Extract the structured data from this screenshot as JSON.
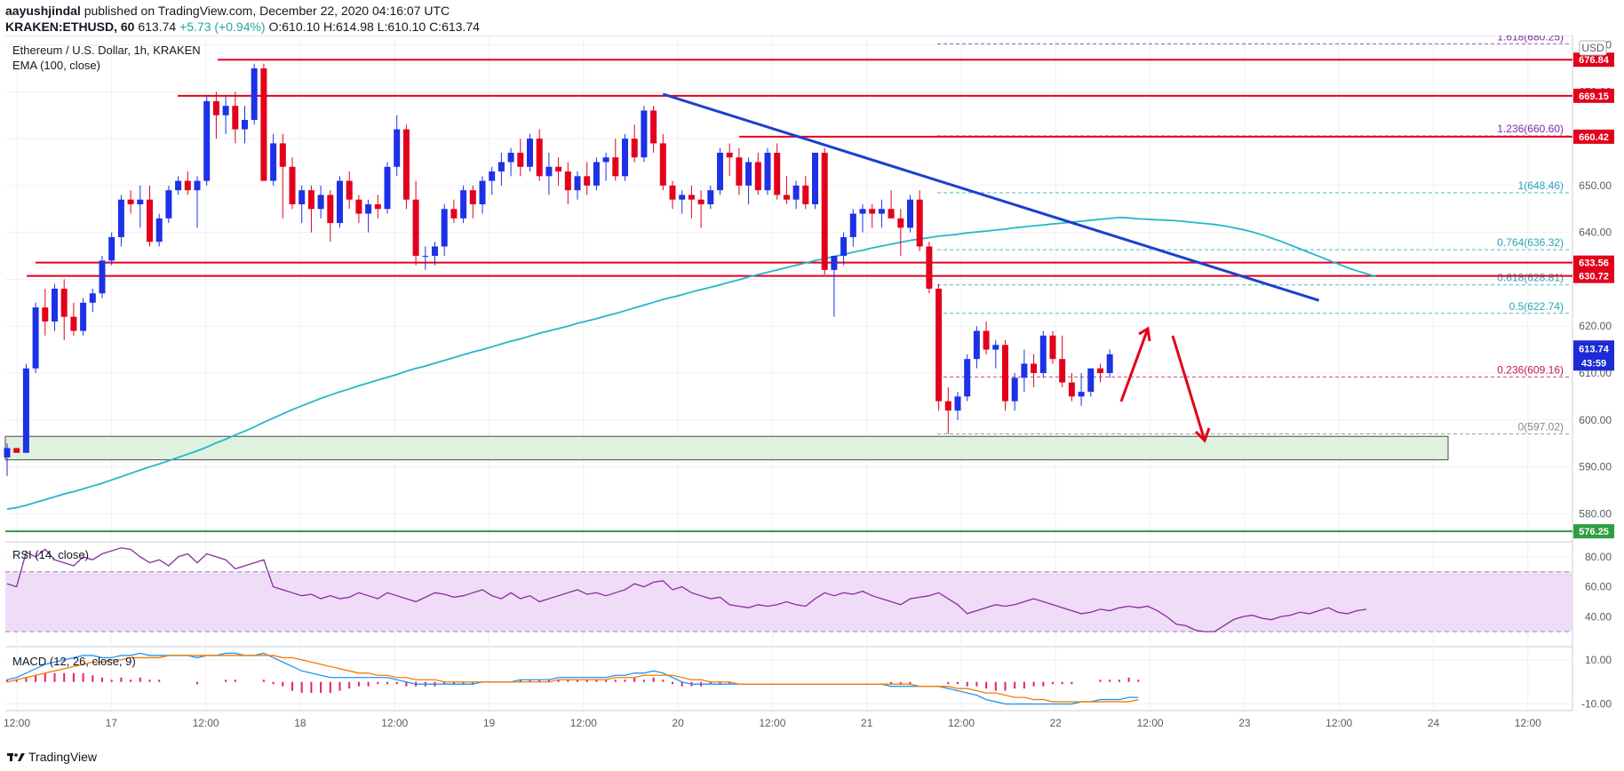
{
  "header": {
    "author": "aayushjindal",
    "published_text": "published on TradingView.com, December 22, 2020 04:16:07 UTC",
    "symbol": "KRAKEN:ETHUSD, 60",
    "last": "613.74",
    "change": "+5.73 (+0.94%)",
    "ohlc": "O:610.10 H:614.98 L:610.10 C:613.74"
  },
  "legend": {
    "title": "Ethereum / U.S. Dollar, 1h, KRAKEN",
    "ema": "EMA (100, close)",
    "rsi": "RSI (14, close)",
    "macd": "MACD (12, 26, close, 9)"
  },
  "footer": {
    "brand": "TradingView"
  },
  "colors": {
    "up": "#1d31e6",
    "down": "#e3001b",
    "ema": "#22b8c9",
    "trendline": "#1e3fcf",
    "resistance": "#e3001b",
    "support_zone": "#dff2df",
    "support_line": "#2e9e3f",
    "fib": "#6a8fd8",
    "rsi": "#8a2d9e",
    "rsi_band": "#efdcf7",
    "macd": "#2196f3",
    "signal": "#f57c00",
    "hist": "#e91e63"
  },
  "chart_data": [
    {
      "type": "candlestick",
      "title": "Ethereum / U.S. Dollar, 1h, KRAKEN",
      "ylim": [
        574,
        682
      ],
      "y_ticks": [
        580,
        590,
        600,
        610,
        620,
        630,
        640,
        650,
        660,
        670,
        680
      ],
      "x_ticks": [
        "12:00",
        "17",
        "12:00",
        "18",
        "12:00",
        "19",
        "12:00",
        "20",
        "12:00",
        "21",
        "12:00",
        "22",
        "12:00",
        "23",
        "12:00",
        "24",
        "12:00"
      ],
      "ohlc": [
        [
          592,
          595,
          588,
          594
        ],
        [
          594,
          594,
          593,
          593
        ],
        [
          593,
          612,
          593,
          611
        ],
        [
          611,
          625,
          610,
          624
        ],
        [
          624,
          628,
          618,
          621
        ],
        [
          621,
          629,
          619,
          628
        ],
        [
          628,
          630,
          617,
          622
        ],
        [
          622,
          625,
          618,
          619
        ],
        [
          619,
          626,
          618,
          625
        ],
        [
          625,
          628,
          623,
          627
        ],
        [
          627,
          635,
          626,
          634
        ],
        [
          634,
          640,
          633,
          639
        ],
        [
          639,
          648,
          637,
          647
        ],
        [
          647,
          649,
          644,
          646
        ],
        [
          646,
          650,
          641,
          647
        ],
        [
          647,
          650,
          637,
          638
        ],
        [
          638,
          644,
          637,
          643
        ],
        [
          643,
          650,
          642,
          649
        ],
        [
          649,
          652,
          648,
          651
        ],
        [
          651,
          653,
          648,
          649
        ],
        [
          649,
          652,
          641,
          651
        ],
        [
          651,
          669,
          650,
          668
        ],
        [
          668,
          670,
          660,
          665
        ],
        [
          665,
          669,
          661,
          667
        ],
        [
          667,
          670,
          659,
          662
        ],
        [
          662,
          667,
          659,
          664
        ],
        [
          664,
          676,
          663,
          675
        ],
        [
          675,
          676,
          651,
          651
        ],
        [
          651,
          661,
          650,
          659
        ],
        [
          659,
          661,
          643,
          654
        ],
        [
          654,
          656,
          645,
          646
        ],
        [
          646,
          650,
          642,
          649
        ],
        [
          649,
          650,
          640,
          645
        ],
        [
          645,
          650,
          643,
          648
        ],
        [
          648,
          649,
          638,
          642
        ],
        [
          642,
          652,
          641,
          651
        ],
        [
          651,
          653,
          645,
          647
        ],
        [
          647,
          648,
          642,
          644
        ],
        [
          644,
          647,
          640,
          646
        ],
        [
          646,
          648,
          643,
          645
        ],
        [
          645,
          655,
          644,
          654
        ],
        [
          654,
          665,
          652,
          662
        ],
        [
          662,
          663,
          645,
          647
        ],
        [
          647,
          651,
          633,
          635
        ],
        [
          635,
          637,
          632,
          635
        ],
        [
          635,
          638,
          633,
          637
        ],
        [
          637,
          646,
          635,
          645
        ],
        [
          645,
          647,
          642,
          643
        ],
        [
          643,
          650,
          642,
          649
        ],
        [
          649,
          650,
          643,
          646
        ],
        [
          646,
          652,
          644,
          651
        ],
        [
          651,
          654,
          648,
          653
        ],
        [
          653,
          657,
          650,
          655
        ],
        [
          655,
          658,
          652,
          657
        ],
        [
          657,
          660,
          652,
          654
        ],
        [
          654,
          661,
          653,
          660
        ],
        [
          660,
          662,
          651,
          652
        ],
        [
          652,
          657,
          648,
          654
        ],
        [
          654,
          656,
          650,
          653
        ],
        [
          653,
          655,
          646,
          649
        ],
        [
          649,
          653,
          647,
          652
        ],
        [
          652,
          655,
          648,
          650
        ],
        [
          650,
          656,
          649,
          655
        ],
        [
          655,
          657,
          651,
          656
        ],
        [
          656,
          660,
          651,
          652
        ],
        [
          652,
          661,
          651,
          660
        ],
        [
          660,
          663,
          655,
          656
        ],
        [
          656,
          667,
          655,
          666
        ],
        [
          666,
          667,
          657,
          659
        ],
        [
          659,
          661,
          649,
          650
        ],
        [
          650,
          651,
          645,
          647
        ],
        [
          647,
          649,
          644,
          648
        ],
        [
          648,
          650,
          643,
          647
        ],
        [
          647,
          649,
          641,
          646
        ],
        [
          646,
          650,
          645,
          649
        ],
        [
          649,
          658,
          648,
          657
        ],
        [
          657,
          659,
          652,
          656
        ],
        [
          656,
          658,
          648,
          650
        ],
        [
          650,
          656,
          646,
          655
        ],
        [
          655,
          657,
          648,
          649
        ],
        [
          649,
          658,
          648,
          657
        ],
        [
          657,
          659,
          647,
          648
        ],
        [
          648,
          652,
          646,
          647
        ],
        [
          647,
          651,
          645,
          650
        ],
        [
          650,
          652,
          645,
          646
        ],
        [
          646,
          657,
          645,
          657
        ],
        [
          657,
          658,
          631,
          632
        ],
        [
          632,
          635,
          622,
          635
        ],
        [
          635,
          640,
          633,
          639
        ],
        [
          639,
          645,
          637,
          644
        ],
        [
          644,
          646,
          640,
          645
        ],
        [
          645,
          646,
          641,
          644
        ],
        [
          644,
          647,
          641,
          645
        ],
        [
          645,
          649,
          643,
          643
        ],
        [
          643,
          645,
          635,
          641
        ],
        [
          641,
          648,
          640,
          647
        ],
        [
          647,
          649,
          636,
          637
        ],
        [
          637,
          638,
          627,
          628
        ],
        [
          628,
          629,
          602,
          604
        ],
        [
          604,
          607,
          597,
          602
        ],
        [
          602,
          606,
          600,
          605
        ],
        [
          605,
          614,
          604,
          613
        ],
        [
          613,
          620,
          611,
          619
        ],
        [
          619,
          621,
          614,
          615
        ],
        [
          615,
          617,
          611,
          616
        ],
        [
          616,
          617,
          602,
          604
        ],
        [
          604,
          610,
          602,
          609
        ],
        [
          609,
          615,
          606,
          612
        ],
        [
          612,
          614,
          607,
          610
        ],
        [
          610,
          619,
          609,
          618
        ],
        [
          618,
          619,
          612,
          613
        ],
        [
          613,
          618,
          607,
          608
        ],
        [
          608,
          610,
          604,
          605
        ],
        [
          605,
          610,
          603,
          606
        ],
        [
          606,
          611,
          605,
          611
        ],
        [
          611,
          612,
          608,
          610
        ],
        [
          610,
          615,
          609,
          614
        ]
      ],
      "ema_100": [
        581,
        581.3,
        581.8,
        582.4,
        583,
        583.6,
        584.2,
        584.7,
        585.3,
        585.9,
        586.5,
        587.2,
        587.9,
        588.6,
        589.3,
        590,
        590.6,
        591.3,
        592,
        592.7,
        593.4,
        594.2,
        595.1,
        595.9,
        596.8,
        597.6,
        598.5,
        599.5,
        600.4,
        601.3,
        602.2,
        603,
        603.8,
        604.6,
        605.3,
        606,
        606.6,
        607.3,
        607.9,
        608.5,
        609.1,
        609.7,
        610.4,
        611,
        611.5,
        612.1,
        612.7,
        613.3,
        613.9,
        614.5,
        615,
        615.6,
        616.2,
        616.8,
        617.3,
        617.9,
        618.5,
        619,
        619.5,
        620,
        620.6,
        621.1,
        621.6,
        622.2,
        622.7,
        623.3,
        623.9,
        624.5,
        625.1,
        625.7,
        626.2,
        626.7,
        627.3,
        627.8,
        628.3,
        628.8,
        629.4,
        629.9,
        630.5,
        631,
        631.5,
        632,
        632.5,
        633,
        633.5,
        634,
        634.4,
        634.9,
        635.3,
        635.8,
        636.2,
        636.7,
        637.1,
        637.5,
        637.9,
        638.3,
        638.6,
        638.9,
        639.2,
        639.4,
        639.6,
        639.9,
        640.1,
        640.3,
        640.5,
        640.7,
        641,
        641.2,
        641.4,
        641.6,
        641.8,
        642,
        642.2,
        642.4,
        642.6,
        642.8,
        643,
        643.2,
        643.1,
        642.9,
        642.8,
        642.7,
        642.6,
        642.5,
        642.3,
        642.1,
        641.9,
        641.7,
        641.4,
        641,
        640.6,
        640.1,
        639.5,
        638.8,
        638.1,
        637.3,
        636.5,
        635.7,
        634.9,
        634.1,
        633.3,
        632.5,
        631.8,
        631.2,
        630.6
      ],
      "annotations": {
        "resistance_levels": [
          676.84,
          669.15,
          660.42,
          633.56,
          630.72
        ],
        "support_line": 576.25,
        "support_zone": [
          591.5,
          596.5
        ],
        "fibonacci": [
          {
            "label": "1.618(680.25)",
            "value": 680.25
          },
          {
            "label": "1.236(660.60)",
            "value": 660.6
          },
          {
            "label": "1(648.46)",
            "value": 648.46
          },
          {
            "label": "0.764(636.32)",
            "value": 636.32
          },
          {
            "label": "0.618(628.81)",
            "value": 628.81
          },
          {
            "label": "0.5(622.74)",
            "value": 622.74
          },
          {
            "label": "0.236(609.16)",
            "value": 609.16
          },
          {
            "label": "0(597.02)",
            "value": 597.02
          }
        ],
        "trendline": {
          "from": {
            "bar": 69,
            "value": 669.5
          },
          "to": {
            "bar": 138,
            "value": 625.5
          }
        },
        "price_tags": [
          "676.84",
          "669.15",
          "660.42",
          "633.56",
          "630.72",
          "576.25"
        ],
        "last_price_tag": "613.74",
        "countdown_tag": "43:59",
        "currency": "USD"
      }
    },
    {
      "type": "line",
      "title": "RSI (14, close)",
      "ylim": [
        20,
        90
      ],
      "y_ticks": [
        40.0,
        60.0,
        80.0
      ],
      "band": [
        30,
        70
      ],
      "values": [
        62,
        60,
        83,
        80,
        85,
        78,
        76,
        74,
        80,
        78,
        82,
        84,
        86,
        85,
        80,
        76,
        78,
        74,
        80,
        82,
        76,
        82,
        80,
        78,
        72,
        74,
        76,
        78,
        60,
        58,
        56,
        54,
        55,
        52,
        54,
        52,
        53,
        56,
        54,
        52,
        56,
        54,
        52,
        50,
        53,
        56,
        55,
        53,
        54,
        56,
        58,
        54,
        52,
        56,
        52,
        54,
        50,
        52,
        54,
        56,
        58,
        55,
        56,
        54,
        56,
        58,
        62,
        60,
        63,
        64,
        58,
        60,
        56,
        54,
        52,
        53,
        48,
        47,
        46,
        48,
        47,
        48,
        50,
        48,
        47,
        52,
        56,
        54,
        56,
        55,
        57,
        54,
        52,
        50,
        48,
        52,
        53,
        54,
        56,
        52,
        48,
        42,
        44,
        46,
        48,
        47,
        48,
        50,
        52,
        50,
        48,
        46,
        44,
        42,
        43,
        45,
        44,
        46,
        47,
        46,
        47,
        44,
        40,
        35,
        34,
        31,
        30,
        30,
        34,
        38,
        40,
        41,
        39,
        38,
        40,
        41,
        43,
        42,
        44,
        46,
        43,
        42,
        44,
        45
      ]
    },
    {
      "type": "macd",
      "title": "MACD (12, 26, close, 9)",
      "ylim": [
        -13,
        16
      ],
      "y_ticks": [
        -10.0,
        10.0
      ],
      "macd": [
        1,
        2,
        4,
        6,
        8,
        9,
        10,
        11,
        12,
        12,
        11,
        11,
        12,
        12,
        13,
        12,
        12,
        12,
        12,
        12,
        11,
        12,
        12,
        13,
        13,
        12,
        12,
        13,
        11,
        9,
        7,
        5,
        4,
        3,
        2,
        2,
        2,
        2,
        2,
        2,
        2,
        1,
        0,
        -1,
        -1,
        -1,
        -1,
        -1,
        -1,
        -1,
        0,
        0,
        0,
        0,
        1,
        1,
        1,
        1,
        2,
        2,
        2,
        2,
        2,
        2,
        3,
        3,
        4,
        4,
        5,
        4,
        2,
        0,
        -1,
        -1,
        -1,
        -1,
        -1,
        -1,
        -1,
        -1,
        -1,
        -1,
        -1,
        -1,
        -1,
        -1,
        -1,
        -1,
        -1,
        -1,
        -1,
        -1,
        -1,
        -2,
        -2,
        -2,
        -2,
        -2,
        -2,
        -3,
        -4,
        -5,
        -6,
        -8,
        -9,
        -10,
        -10,
        -10,
        -10,
        -10,
        -10,
        -10,
        -10,
        -9,
        -9,
        -8,
        -8,
        -8,
        -7,
        -7
      ],
      "signal": [
        0,
        1,
        2,
        3,
        4,
        5,
        6,
        7,
        8,
        9,
        9,
        10,
        10,
        11,
        11,
        11,
        11,
        12,
        12,
        12,
        12,
        12,
        12,
        12,
        12,
        12,
        12,
        12,
        12,
        11,
        11,
        10,
        9,
        8,
        7,
        6,
        5,
        4,
        4,
        3,
        3,
        2,
        2,
        1,
        1,
        1,
        0,
        0,
        0,
        0,
        0,
        0,
        0,
        0,
        0,
        0,
        0,
        0,
        1,
        1,
        1,
        1,
        1,
        1,
        2,
        2,
        2,
        3,
        3,
        3,
        3,
        2,
        1,
        1,
        0,
        0,
        0,
        -1,
        -1,
        -1,
        -1,
        -1,
        -1,
        -1,
        -1,
        -1,
        -1,
        -1,
        -1,
        -1,
        -1,
        -1,
        -1,
        -1,
        -1,
        -1,
        -2,
        -2,
        -2,
        -2,
        -3,
        -3,
        -4,
        -5,
        -5,
        -6,
        -7,
        -7,
        -8,
        -8,
        -9,
        -9,
        -9,
        -9,
        -9,
        -9,
        -9,
        -9,
        -9,
        -8
      ]
    }
  ]
}
